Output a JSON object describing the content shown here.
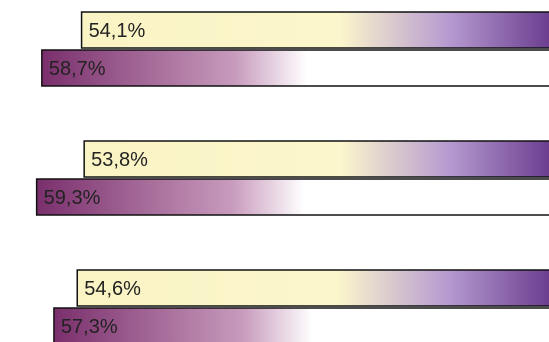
{
  "chart_data": {
    "type": "bar",
    "orientation": "horizontal",
    "groups": [
      {
        "bars": [
          {
            "label": "54,1%",
            "value": 54.1,
            "style": "light"
          },
          {
            "label": "58,7%",
            "value": 58.7,
            "style": "dark"
          }
        ]
      },
      {
        "bars": [
          {
            "label": "53,8%",
            "value": 53.8,
            "style": "light"
          },
          {
            "label": "59,3%",
            "value": 59.3,
            "style": "dark"
          }
        ]
      },
      {
        "bars": [
          {
            "label": "54,6%",
            "value": 54.6,
            "style": "light"
          },
          {
            "label": "57,3%",
            "value": 57.3,
            "style": "dark"
          }
        ]
      }
    ],
    "title": "",
    "xlabel": "",
    "ylabel": "",
    "grid": false,
    "legend": "none"
  },
  "colors": {
    "light_start": "#faf4c4",
    "light_end": "#6a3d8f",
    "dark_start": "#7a2f6c",
    "dark_mid": "#ffffff",
    "outline": "#111111"
  }
}
